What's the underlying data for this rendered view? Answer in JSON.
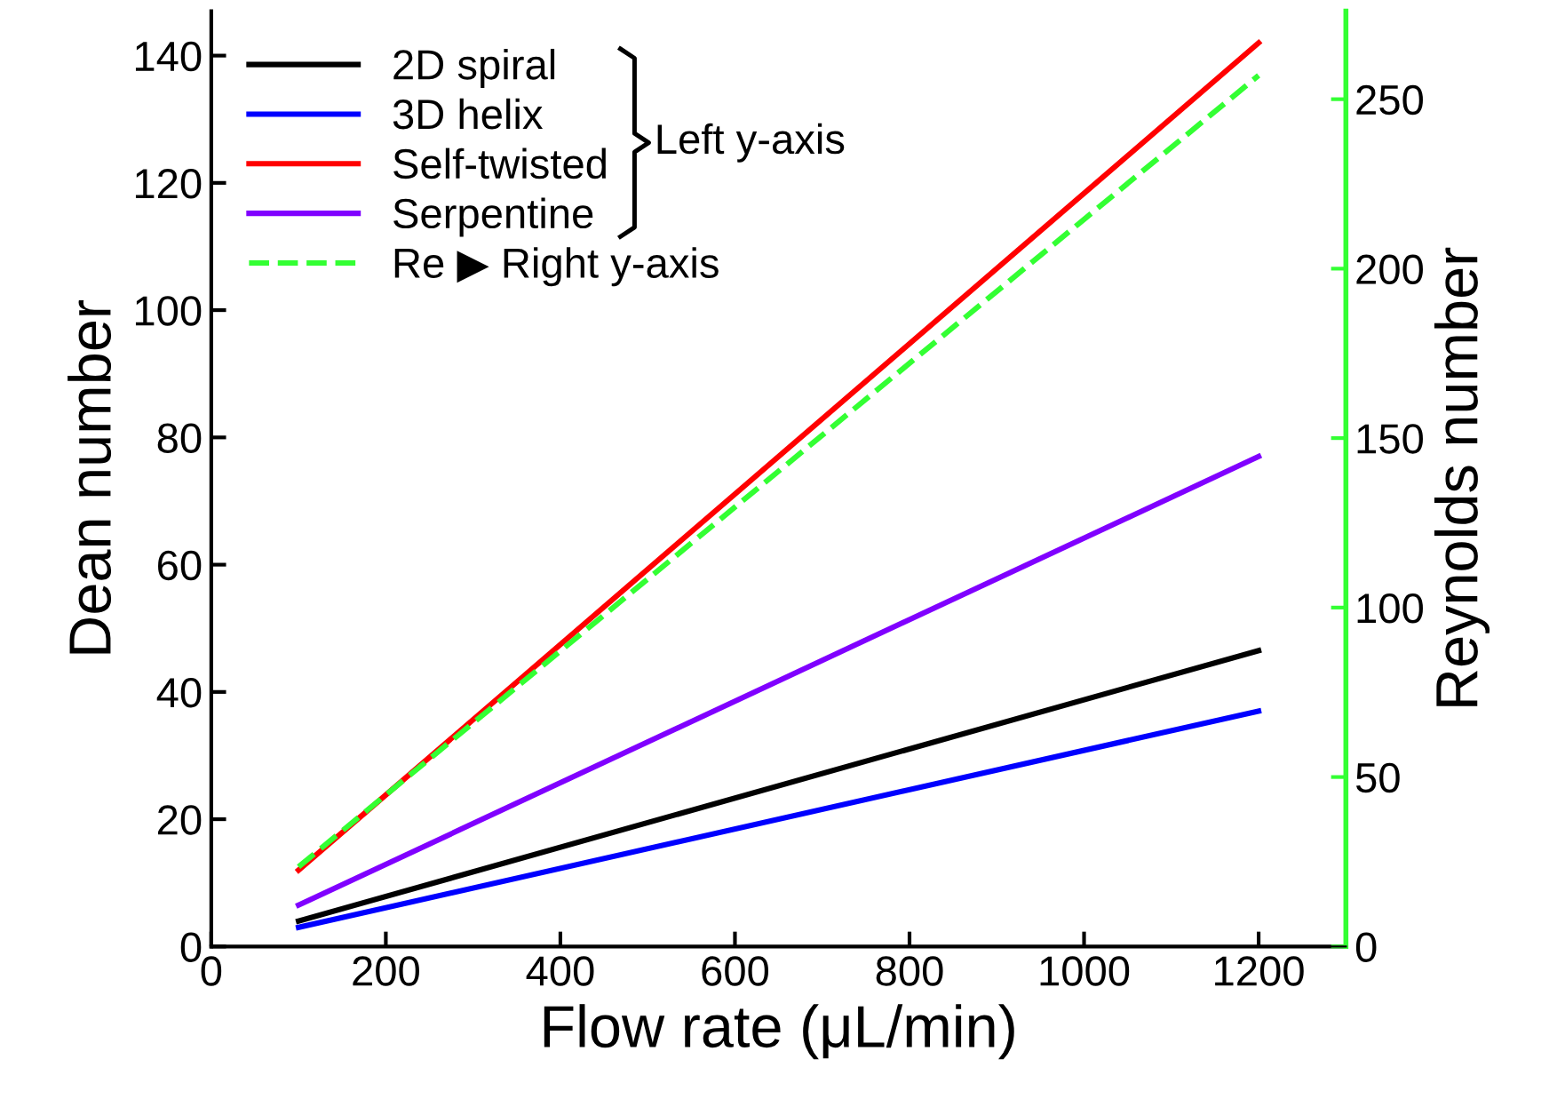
{
  "chart_data": {
    "type": "line",
    "xlabel": "Flow rate (μL/min)",
    "ylabel": "Dean number",
    "y2label": "Reynolds number",
    "xlim": [
      0,
      1300
    ],
    "xticks": [
      0,
      200,
      400,
      600,
      800,
      1000,
      1200
    ],
    "ylim": [
      0,
      147
    ],
    "yticks": [
      0,
      20,
      40,
      60,
      80,
      100,
      120,
      140
    ],
    "y2lim": [
      0,
      276
    ],
    "y2ticks": [
      0,
      50,
      100,
      150,
      200,
      250
    ],
    "legend": "top left",
    "grid": false,
    "line_style": "solid",
    "annotations": [
      "Left y-axis"
    ],
    "x": [
      100,
      1200
    ],
    "series": [
      {
        "name": "2D spiral",
        "color": "#000000",
        "values": [
          4,
          46.5
        ]
      },
      {
        "name": "3D helix",
        "color": "#0000ff",
        "values": [
          3,
          37
        ]
      },
      {
        "name": "Self-twisted",
        "color": "#ff0000",
        "values": [
          12,
          142
        ]
      },
      {
        "name": "Serpentine",
        "color": "#8000ff",
        "values": [
          6.5,
          77
        ]
      },
      {
        "name": "Re ▶ Right y-axis",
        "color": "#33ff33",
        "values": [
          23.5,
          257
        ],
        "axis": "y2",
        "line_style": "dashed"
      }
    ]
  }
}
